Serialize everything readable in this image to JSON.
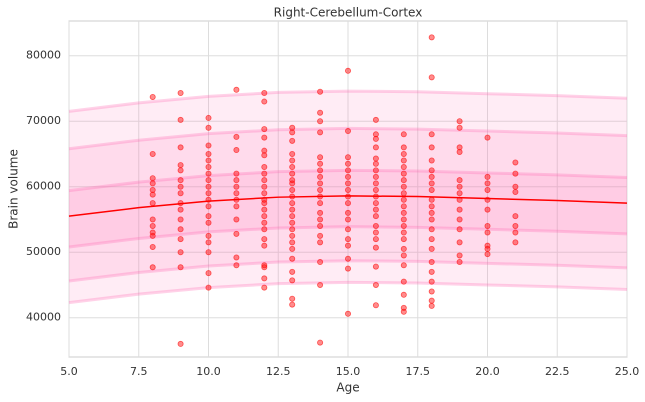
{
  "chart_data": {
    "type": "scatter",
    "title": "Right-Cerebellum-Cortex",
    "xlabel": "Age",
    "ylabel": "Brain volume",
    "xlim": [
      5,
      25
    ],
    "ylim": [
      34000,
      85300
    ],
    "xticks": [
      {
        "value": 5,
        "label": "5.0"
      },
      {
        "value": 7.5,
        "label": "7.5"
      },
      {
        "value": 10,
        "label": "10.0"
      },
      {
        "value": 12.5,
        "label": "12.5"
      },
      {
        "value": 15,
        "label": "15.0"
      },
      {
        "value": 17.5,
        "label": "17.5"
      },
      {
        "value": 20,
        "label": "20.0"
      },
      {
        "value": 22.5,
        "label": "22.5"
      },
      {
        "value": 25,
        "label": "25.0"
      }
    ],
    "yticks": [
      40000,
      50000,
      60000,
      70000,
      80000
    ],
    "grid": true,
    "point_color": "#ff0000",
    "line_color": "#ff0000",
    "band_color": "#ff69b4",
    "curve_x": [
      5,
      7.5,
      10,
      12.5,
      15,
      17.5,
      20,
      22.5,
      25
    ],
    "median": [
      55500,
      56800,
      57800,
      58400,
      58600,
      58500,
      58200,
      57900,
      57500
    ],
    "bands": [
      {
        "upper": [
          71500,
          72800,
          73800,
          74400,
          74600,
          74500,
          74200,
          73900,
          73500
        ],
        "lower": [
          42300,
          43600,
          44600,
          45200,
          45400,
          45300,
          45000,
          44700,
          44300
        ]
      },
      {
        "upper": [
          65800,
          67100,
          68100,
          68700,
          68900,
          68800,
          68500,
          68200,
          67800
        ],
        "lower": [
          45600,
          46900,
          47900,
          48500,
          48700,
          48600,
          48300,
          48000,
          47600
        ]
      },
      {
        "upper": [
          59400,
          60700,
          61700,
          62300,
          62500,
          62400,
          62100,
          61800,
          61400
        ],
        "lower": [
          50800,
          52100,
          53100,
          53700,
          53900,
          53800,
          53500,
          53200,
          52800
        ]
      }
    ],
    "groups": [
      {
        "x": 8,
        "y": [
          73700,
          65000,
          61300,
          60500,
          59500,
          58800,
          57500,
          55000,
          54000,
          53000,
          52500,
          50800,
          47700
        ]
      },
      {
        "x": 9,
        "y": [
          74300,
          70200,
          66000,
          63300,
          62500,
          61000,
          60000,
          59000,
          57500,
          56500,
          55000,
          53500,
          52000,
          50000,
          47700,
          36000
        ]
      },
      {
        "x": 10,
        "y": [
          70500,
          69000,
          66300,
          65000,
          64000,
          63000,
          62000,
          61000,
          60000,
          59000,
          58000,
          57000,
          55500,
          54500,
          52500,
          51500,
          50000,
          46800,
          44600
        ]
      },
      {
        "x": 11,
        "y": [
          74800,
          67600,
          65600,
          62000,
          61000,
          60000,
          59000,
          58000,
          57000,
          55000,
          52800,
          49200,
          48000
        ]
      },
      {
        "x": 12,
        "y": [
          74300,
          73000,
          68800,
          67500,
          65500,
          64800,
          63000,
          62000,
          61000,
          60000,
          59000,
          58000,
          57500,
          56500,
          55500,
          54500,
          53500,
          52000,
          51000,
          48000,
          47700,
          46000,
          44600
        ]
      },
      {
        "x": 13,
        "y": [
          69000,
          68300,
          67000,
          65000,
          64000,
          63000,
          62000,
          61000,
          60500,
          59500,
          58500,
          57500,
          56500,
          55500,
          54500,
          53500,
          52500,
          51500,
          50500,
          49000,
          47000,
          45700,
          42900,
          42000
        ]
      },
      {
        "x": 14,
        "y": [
          74500,
          71300,
          70000,
          68300,
          64500,
          63500,
          62500,
          61500,
          60500,
          59500,
          58500,
          57500,
          56000,
          55000,
          54000,
          52500,
          51500,
          48500,
          45000,
          36200
        ]
      },
      {
        "x": 15,
        "y": [
          77700,
          68500,
          64500,
          63500,
          62500,
          61500,
          60500,
          59500,
          58500,
          57500,
          56000,
          55000,
          53500,
          52000,
          51000,
          49000,
          47500,
          40600
        ]
      },
      {
        "x": 16,
        "y": [
          70200,
          68000,
          67300,
          66000,
          64300,
          63500,
          62500,
          61500,
          60500,
          59500,
          58500,
          57500,
          56500,
          55500,
          54000,
          53000,
          52000,
          50700,
          47800,
          45000,
          41900
        ]
      },
      {
        "x": 17,
        "y": [
          68000,
          66000,
          65000,
          64000,
          63000,
          62000,
          61000,
          60000,
          59000,
          58000,
          57000,
          56000,
          55000,
          54000,
          53000,
          52000,
          50500,
          49500,
          48000,
          45500,
          43500,
          41500,
          40900
        ]
      },
      {
        "x": 18,
        "y": [
          82800,
          76700,
          68000,
          66000,
          64000,
          62500,
          61500,
          60500,
          59500,
          58000,
          57000,
          56000,
          55000,
          53500,
          52000,
          50500,
          48500,
          47000,
          45500,
          44000,
          42600,
          41800
        ]
      },
      {
        "x": 19,
        "y": [
          70000,
          69000,
          66000,
          65300,
          61000,
          60000,
          59000,
          58000,
          56500,
          55000,
          53500,
          51500,
          49500,
          48500
        ]
      },
      {
        "x": 20,
        "y": [
          67500,
          61500,
          60500,
          59500,
          58000,
          56500,
          54000,
          53000,
          51000,
          50500,
          49700
        ]
      },
      {
        "x": 21,
        "y": [
          63700,
          62000,
          60000,
          59200,
          55500,
          54000,
          53000,
          51500
        ]
      }
    ]
  }
}
